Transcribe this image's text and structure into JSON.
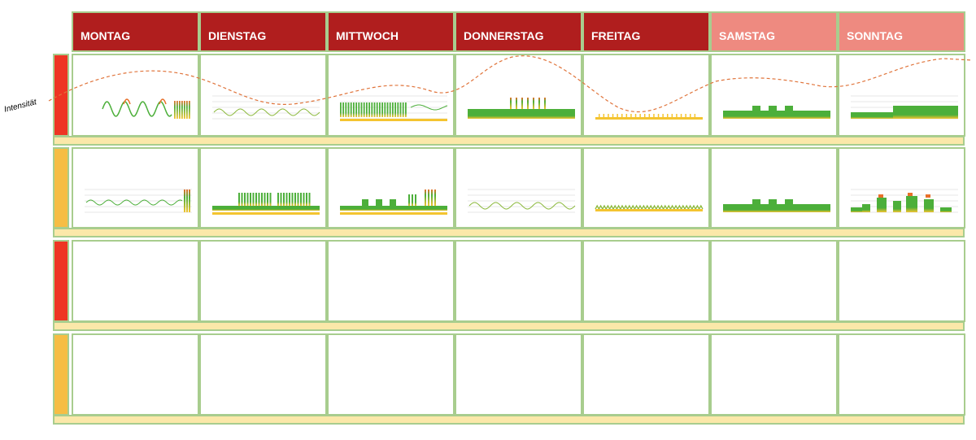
{
  "days": [
    {
      "label": "MONTAG",
      "color": "#b01e1e"
    },
    {
      "label": "DIENSTAG",
      "color": "#b01e1e"
    },
    {
      "label": "MITTWOCH",
      "color": "#b01e1e"
    },
    {
      "label": "DONNERSTAG",
      "color": "#b01e1e"
    },
    {
      "label": "FREITAG",
      "color": "#b01e1e"
    },
    {
      "label": "SAMSTAG",
      "color": "#ee8a80"
    },
    {
      "label": "SONNTAG",
      "color": "#ee8a80"
    }
  ],
  "row_markers": [
    {
      "color": "#ee3523"
    },
    {
      "color": "#f6bd44"
    },
    {
      "color": "#ee3523"
    },
    {
      "color": "#f6bd44"
    }
  ],
  "intensity": {
    "label": "Intensität",
    "color": "#e0743b"
  },
  "palette": {
    "green": "#4caf3a",
    "yellow": "#f4c430",
    "orange": "#e8702a",
    "grid": "#cfcfcf",
    "border": "#a8cd8e",
    "separator": "#fbe8a9"
  },
  "charts": [
    [
      {
        "type": "wave-spiky"
      },
      {
        "type": "sine-thin"
      },
      {
        "type": "spiky-dense"
      },
      {
        "type": "plateau-spikes"
      },
      {
        "type": "flat-ticks"
      },
      {
        "type": "steps-3"
      },
      {
        "type": "ramp-up"
      }
    ],
    [
      {
        "type": "sine-end-spike"
      },
      {
        "type": "dense-bars"
      },
      {
        "type": "mixed-blocks"
      },
      {
        "type": "sine-thin"
      },
      {
        "type": "zigzag"
      },
      {
        "type": "steps-3"
      },
      {
        "type": "rising-blocks"
      }
    ]
  ]
}
